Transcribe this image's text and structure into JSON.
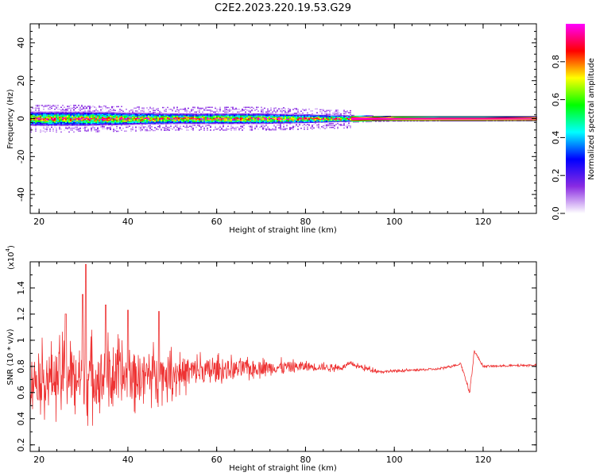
{
  "figure": {
    "title": "C2E2.2023.220.19.53.G29"
  },
  "chart_data": [
    {
      "type": "heatmap",
      "title": "C2E2.2023.220.19.53.G29",
      "xlabel": "Height of straight line (km)",
      "ylabel": "Frequency (Hz)",
      "xlim": [
        18,
        132
      ],
      "ylim": [
        -50,
        50
      ],
      "xticks": [
        20,
        40,
        60,
        80,
        100,
        120
      ],
      "yticks": [
        -40,
        -20,
        0,
        20,
        40
      ],
      "colorbar": {
        "label": "Normalized spectral amplitude",
        "range": [
          0,
          1
        ],
        "ticks": [
          0.0,
          0.2,
          0.4,
          0.6,
          0.8
        ],
        "colormap": [
          "#ffffff",
          "#8a2be2",
          "#0000ff",
          "#00ffff",
          "#00ff00",
          "#ffff00",
          "#ff0000",
          "#ff00ff"
        ]
      },
      "band": {
        "center_hz": 0,
        "halfwidth_hz": [
          [
            18,
            4
          ],
          [
            30,
            4
          ],
          [
            40,
            3.5
          ],
          [
            50,
            3
          ],
          [
            60,
            3
          ],
          [
            70,
            3
          ],
          [
            80,
            2.5
          ],
          [
            90,
            1.8
          ],
          [
            100,
            1.2
          ],
          [
            110,
            1.1
          ],
          [
            120,
            1.1
          ],
          [
            132,
            1.0
          ]
        ]
      }
    },
    {
      "type": "line",
      "xlabel": "Height of straight line (km)",
      "ylabel": "SNR (10 * v/v)",
      "y_multiplier_label": "(x10",
      "y_multiplier_exp": "4",
      "xlim": [
        18,
        132
      ],
      "ylim": [
        0.15,
        1.6
      ],
      "xticks": [
        20,
        40,
        60,
        80,
        100,
        120
      ],
      "yticks": [
        0.2,
        0.4,
        0.6,
        0.8,
        1.0,
        1.2,
        1.4
      ],
      "series": [
        {
          "color": "#ee3333",
          "envelope": [
            [
              18,
              0.7,
              0.3
            ],
            [
              25,
              0.72,
              0.35
            ],
            [
              30,
              0.72,
              0.4
            ],
            [
              40,
              0.72,
              0.33
            ],
            [
              50,
              0.75,
              0.22
            ],
            [
              60,
              0.77,
              0.14
            ],
            [
              70,
              0.79,
              0.09
            ],
            [
              80,
              0.8,
              0.06
            ],
            [
              88,
              0.79,
              0.03
            ],
            [
              90,
              0.82,
              0.02
            ],
            [
              94,
              0.78,
              0.03
            ],
            [
              97,
              0.76,
              0.015
            ],
            [
              110,
              0.78,
              0.012
            ],
            [
              115,
              0.82,
              0.015
            ],
            [
              117,
              0.6,
              0.02
            ],
            [
              118,
              0.92,
              0.02
            ],
            [
              120,
              0.8,
              0.012
            ],
            [
              132,
              0.81,
              0.01
            ]
          ],
          "peaks": [
            [
              30.5,
              1.58
            ],
            [
              29.8,
              1.35
            ],
            [
              26,
              1.2
            ],
            [
              35,
              1.27
            ],
            [
              40,
              1.23
            ],
            [
              47,
              1.22
            ]
          ]
        }
      ]
    }
  ]
}
